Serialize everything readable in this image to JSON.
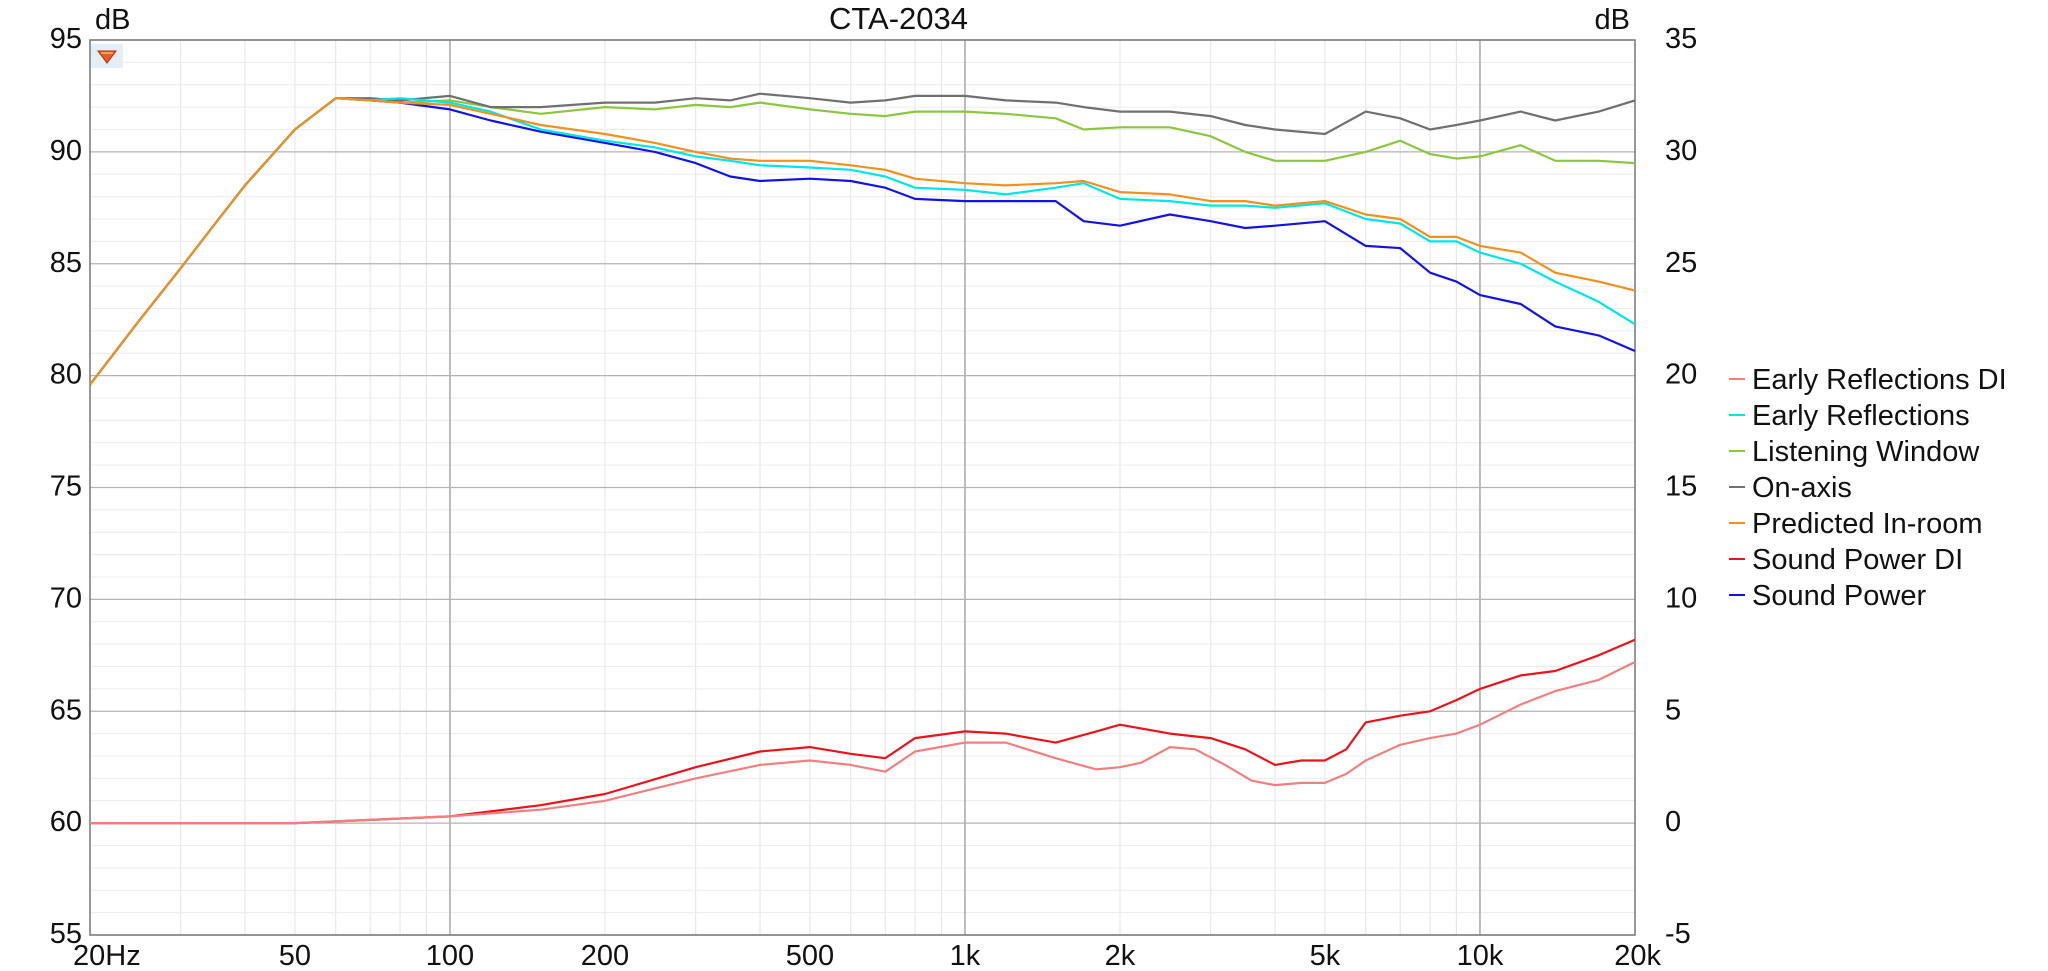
{
  "chart_data": {
    "type": "line",
    "title": "CTA-2034",
    "xscale": "log",
    "xlim": [
      20,
      20000
    ],
    "ylim": [
      55,
      95
    ],
    "y2lim": [
      -5,
      35
    ],
    "ylabel": "dB",
    "y2label": "dB",
    "grid": true,
    "legend_position": "right",
    "x_ticks": [
      {
        "value": 20,
        "label": "20Hz"
      },
      {
        "value": 50,
        "label": "50"
      },
      {
        "value": 100,
        "label": "100"
      },
      {
        "value": 200,
        "label": "200"
      },
      {
        "value": 500,
        "label": "500"
      },
      {
        "value": 1000,
        "label": "1k"
      },
      {
        "value": 2000,
        "label": "2k"
      },
      {
        "value": 5000,
        "label": "5k"
      },
      {
        "value": 10000,
        "label": "10k"
      },
      {
        "value": 20000,
        "label": "20k"
      }
    ],
    "y_ticks": [
      95,
      90,
      85,
      80,
      75,
      70,
      65,
      60,
      55
    ],
    "y2_ticks": [
      35,
      30,
      25,
      20,
      15,
      10,
      5,
      0,
      -5
    ],
    "series": [
      {
        "name": "Early Reflections DI",
        "color": "#f08080",
        "axis": "right",
        "points": [
          [
            20,
            0
          ],
          [
            50,
            0
          ],
          [
            100,
            0.3
          ],
          [
            150,
            0.6
          ],
          [
            200,
            1.0
          ],
          [
            300,
            2.0
          ],
          [
            400,
            2.6
          ],
          [
            500,
            2.8
          ],
          [
            600,
            2.6
          ],
          [
            700,
            2.3
          ],
          [
            800,
            3.2
          ],
          [
            1000,
            3.6
          ],
          [
            1200,
            3.6
          ],
          [
            1500,
            2.9
          ],
          [
            1800,
            2.4
          ],
          [
            2000,
            2.5
          ],
          [
            2200,
            2.7
          ],
          [
            2500,
            3.4
          ],
          [
            2800,
            3.3
          ],
          [
            3200,
            2.6
          ],
          [
            3600,
            1.9
          ],
          [
            4000,
            1.7
          ],
          [
            4500,
            1.8
          ],
          [
            5000,
            1.8
          ],
          [
            5500,
            2.2
          ],
          [
            6000,
            2.8
          ],
          [
            7000,
            3.5
          ],
          [
            8000,
            3.8
          ],
          [
            9000,
            4.0
          ],
          [
            10000,
            4.4
          ],
          [
            12000,
            5.3
          ],
          [
            14000,
            5.9
          ],
          [
            17000,
            6.4
          ],
          [
            20000,
            7.2
          ]
        ]
      },
      {
        "name": "Early Reflections",
        "color": "#00e5e5",
        "axis": "left",
        "points": [
          [
            20,
            79.6
          ],
          [
            25,
            82.5
          ],
          [
            30,
            84.8
          ],
          [
            35,
            86.8
          ],
          [
            40,
            88.5
          ],
          [
            50,
            91.0
          ],
          [
            60,
            92.4
          ],
          [
            70,
            92.3
          ],
          [
            80,
            92.4
          ],
          [
            100,
            92.2
          ],
          [
            120,
            91.8
          ],
          [
            150,
            91.0
          ],
          [
            200,
            90.5
          ],
          [
            250,
            90.2
          ],
          [
            300,
            89.8
          ],
          [
            350,
            89.6
          ],
          [
            400,
            89.4
          ],
          [
            500,
            89.3
          ],
          [
            600,
            89.2
          ],
          [
            700,
            88.9
          ],
          [
            800,
            88.4
          ],
          [
            1000,
            88.3
          ],
          [
            1200,
            88.1
          ],
          [
            1500,
            88.4
          ],
          [
            1700,
            88.6
          ],
          [
            2000,
            87.9
          ],
          [
            2500,
            87.8
          ],
          [
            3000,
            87.6
          ],
          [
            3500,
            87.6
          ],
          [
            4000,
            87.5
          ],
          [
            5000,
            87.7
          ],
          [
            6000,
            87.0
          ],
          [
            7000,
            86.8
          ],
          [
            8000,
            86.0
          ],
          [
            9000,
            86.0
          ],
          [
            10000,
            85.5
          ],
          [
            12000,
            85.0
          ],
          [
            14000,
            84.2
          ],
          [
            17000,
            83.3
          ],
          [
            20000,
            82.3
          ]
        ]
      },
      {
        "name": "Listening Window",
        "color": "#8cc63f",
        "axis": "left",
        "points": [
          [
            20,
            79.6
          ],
          [
            25,
            82.5
          ],
          [
            30,
            84.8
          ],
          [
            35,
            86.8
          ],
          [
            40,
            88.5
          ],
          [
            50,
            91.0
          ],
          [
            60,
            92.4
          ],
          [
            70,
            92.3
          ],
          [
            80,
            92.2
          ],
          [
            100,
            92.3
          ],
          [
            120,
            92.0
          ],
          [
            150,
            91.7
          ],
          [
            200,
            92.0
          ],
          [
            250,
            91.9
          ],
          [
            300,
            92.1
          ],
          [
            350,
            92.0
          ],
          [
            400,
            92.2
          ],
          [
            500,
            91.9
          ],
          [
            600,
            91.7
          ],
          [
            700,
            91.6
          ],
          [
            800,
            91.8
          ],
          [
            1000,
            91.8
          ],
          [
            1200,
            91.7
          ],
          [
            1500,
            91.5
          ],
          [
            1700,
            91.0
          ],
          [
            2000,
            91.1
          ],
          [
            2500,
            91.1
          ],
          [
            3000,
            90.7
          ],
          [
            3500,
            90.0
          ],
          [
            4000,
            89.6
          ],
          [
            5000,
            89.6
          ],
          [
            6000,
            90.0
          ],
          [
            7000,
            90.5
          ],
          [
            8000,
            89.9
          ],
          [
            9000,
            89.7
          ],
          [
            10000,
            89.8
          ],
          [
            12000,
            90.3
          ],
          [
            14000,
            89.6
          ],
          [
            17000,
            89.6
          ],
          [
            20000,
            89.5
          ]
        ]
      },
      {
        "name": "On-axis",
        "color": "#707070",
        "axis": "left",
        "points": [
          [
            20,
            79.6
          ],
          [
            25,
            82.5
          ],
          [
            30,
            84.8
          ],
          [
            35,
            86.8
          ],
          [
            40,
            88.5
          ],
          [
            50,
            91.0
          ],
          [
            60,
            92.4
          ],
          [
            70,
            92.4
          ],
          [
            80,
            92.3
          ],
          [
            100,
            92.5
          ],
          [
            120,
            92.0
          ],
          [
            150,
            92.0
          ],
          [
            200,
            92.2
          ],
          [
            250,
            92.2
          ],
          [
            300,
            92.4
          ],
          [
            350,
            92.3
          ],
          [
            400,
            92.6
          ],
          [
            500,
            92.4
          ],
          [
            600,
            92.2
          ],
          [
            700,
            92.3
          ],
          [
            800,
            92.5
          ],
          [
            1000,
            92.5
          ],
          [
            1200,
            92.3
          ],
          [
            1500,
            92.2
          ],
          [
            1700,
            92.0
          ],
          [
            2000,
            91.8
          ],
          [
            2500,
            91.8
          ],
          [
            3000,
            91.6
          ],
          [
            3500,
            91.2
          ],
          [
            4000,
            91.0
          ],
          [
            5000,
            90.8
          ],
          [
            6000,
            91.8
          ],
          [
            7000,
            91.5
          ],
          [
            8000,
            91.0
          ],
          [
            9000,
            91.2
          ],
          [
            10000,
            91.4
          ],
          [
            12000,
            91.8
          ],
          [
            14000,
            91.4
          ],
          [
            17000,
            91.8
          ],
          [
            20000,
            92.3
          ]
        ]
      },
      {
        "name": "Predicted In-room",
        "color": "#f0901e",
        "axis": "left",
        "points": [
          [
            20,
            79.6
          ],
          [
            25,
            82.5
          ],
          [
            30,
            84.8
          ],
          [
            35,
            86.8
          ],
          [
            40,
            88.5
          ],
          [
            50,
            91.0
          ],
          [
            60,
            92.4
          ],
          [
            70,
            92.3
          ],
          [
            80,
            92.2
          ],
          [
            100,
            92.1
          ],
          [
            120,
            91.7
          ],
          [
            150,
            91.2
          ],
          [
            200,
            90.8
          ],
          [
            250,
            90.4
          ],
          [
            300,
            90.0
          ],
          [
            350,
            89.7
          ],
          [
            400,
            89.6
          ],
          [
            500,
            89.6
          ],
          [
            600,
            89.4
          ],
          [
            700,
            89.2
          ],
          [
            800,
            88.8
          ],
          [
            1000,
            88.6
          ],
          [
            1200,
            88.5
          ],
          [
            1500,
            88.6
          ],
          [
            1700,
            88.7
          ],
          [
            2000,
            88.2
          ],
          [
            2500,
            88.1
          ],
          [
            3000,
            87.8
          ],
          [
            3500,
            87.8
          ],
          [
            4000,
            87.6
          ],
          [
            5000,
            87.8
          ],
          [
            6000,
            87.2
          ],
          [
            7000,
            87.0
          ],
          [
            8000,
            86.2
          ],
          [
            9000,
            86.2
          ],
          [
            10000,
            85.8
          ],
          [
            12000,
            85.5
          ],
          [
            14000,
            84.6
          ],
          [
            17000,
            84.2
          ],
          [
            20000,
            83.8
          ]
        ]
      },
      {
        "name": "Sound Power DI",
        "color": "#e8141c",
        "axis": "right",
        "points": [
          [
            20,
            0
          ],
          [
            50,
            0
          ],
          [
            100,
            0.3
          ],
          [
            150,
            0.8
          ],
          [
            200,
            1.3
          ],
          [
            300,
            2.5
          ],
          [
            400,
            3.2
          ],
          [
            500,
            3.4
          ],
          [
            600,
            3.1
          ],
          [
            700,
            2.9
          ],
          [
            800,
            3.8
          ],
          [
            1000,
            4.1
          ],
          [
            1200,
            4.0
          ],
          [
            1500,
            3.6
          ],
          [
            1800,
            4.1
          ],
          [
            2000,
            4.4
          ],
          [
            2500,
            4.0
          ],
          [
            3000,
            3.8
          ],
          [
            3500,
            3.3
          ],
          [
            4000,
            2.6
          ],
          [
            4500,
            2.8
          ],
          [
            5000,
            2.8
          ],
          [
            5500,
            3.3
          ],
          [
            6000,
            4.5
          ],
          [
            7000,
            4.8
          ],
          [
            8000,
            5.0
          ],
          [
            9000,
            5.5
          ],
          [
            10000,
            6.0
          ],
          [
            12000,
            6.6
          ],
          [
            14000,
            6.8
          ],
          [
            17000,
            7.5
          ],
          [
            20000,
            8.2
          ]
        ]
      },
      {
        "name": "Sound Power",
        "color": "#1414e0",
        "axis": "left",
        "points": [
          [
            20,
            79.6
          ],
          [
            25,
            82.5
          ],
          [
            30,
            84.8
          ],
          [
            35,
            86.8
          ],
          [
            40,
            88.5
          ],
          [
            50,
            91.0
          ],
          [
            60,
            92.4
          ],
          [
            70,
            92.3
          ],
          [
            80,
            92.2
          ],
          [
            100,
            91.9
          ],
          [
            120,
            91.4
          ],
          [
            150,
            90.9
          ],
          [
            200,
            90.4
          ],
          [
            250,
            90.0
          ],
          [
            300,
            89.5
          ],
          [
            350,
            88.9
          ],
          [
            400,
            88.7
          ],
          [
            500,
            88.8
          ],
          [
            600,
            88.7
          ],
          [
            700,
            88.4
          ],
          [
            800,
            87.9
          ],
          [
            1000,
            87.8
          ],
          [
            1200,
            87.8
          ],
          [
            1500,
            87.8
          ],
          [
            1700,
            86.9
          ],
          [
            2000,
            86.7
          ],
          [
            2500,
            87.2
          ],
          [
            3000,
            86.9
          ],
          [
            3500,
            86.6
          ],
          [
            4000,
            86.7
          ],
          [
            5000,
            86.9
          ],
          [
            6000,
            85.8
          ],
          [
            7000,
            85.7
          ],
          [
            8000,
            84.6
          ],
          [
            9000,
            84.2
          ],
          [
            10000,
            83.6
          ],
          [
            12000,
            83.2
          ],
          [
            14000,
            82.2
          ],
          [
            17000,
            81.8
          ],
          [
            20000,
            81.1
          ]
        ]
      }
    ]
  }
}
